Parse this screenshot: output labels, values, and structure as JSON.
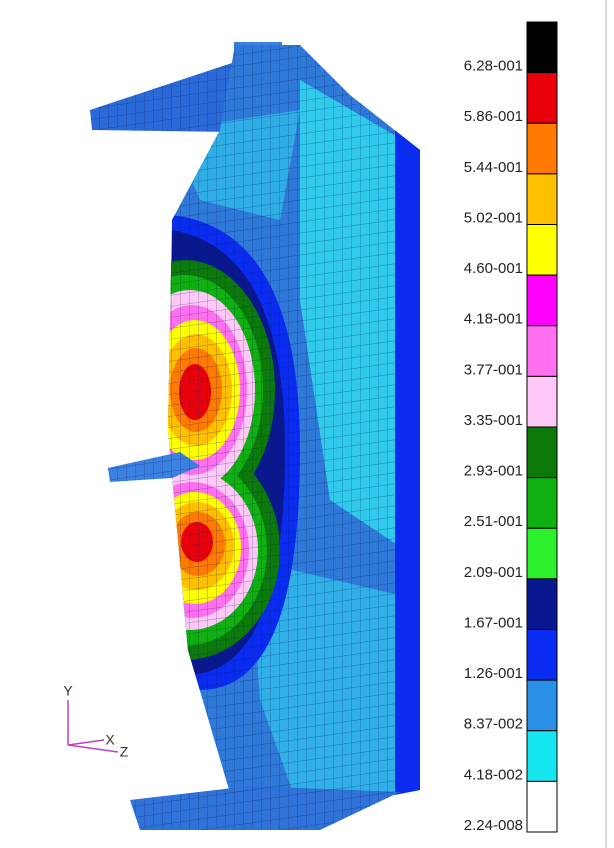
{
  "legend": {
    "entries": [
      {
        "label": "6.28-001",
        "color": "#000000"
      },
      {
        "label": "5.86-001",
        "color": "#e8000a"
      },
      {
        "label": "5.44-001",
        "color": "#ff7a00"
      },
      {
        "label": "5.02-001",
        "color": "#ffc000"
      },
      {
        "label": "4.60-001",
        "color": "#ffff00"
      },
      {
        "label": "4.18-001",
        "color": "#ff00ff"
      },
      {
        "label": "3.77-001",
        "color": "#ff70f0"
      },
      {
        "label": "3.35-001",
        "color": "#ffc8f6"
      },
      {
        "label": "2.93-001",
        "color": "#0b7a0b"
      },
      {
        "label": "2.51-001",
        "color": "#10b010"
      },
      {
        "label": "2.09-001",
        "color": "#2cf02c"
      },
      {
        "label": "1.67-001",
        "color": "#0a1890"
      },
      {
        "label": "1.26-001",
        "color": "#0a2cf0"
      },
      {
        "label": "8.37-002",
        "color": "#2a90e6"
      },
      {
        "label": "4.18-002",
        "color": "#16e6f0"
      },
      {
        "label": "2.24-008",
        "color": "#ffffff"
      }
    ]
  },
  "triad": {
    "y": "Y",
    "x": "X",
    "z": "Z"
  }
}
